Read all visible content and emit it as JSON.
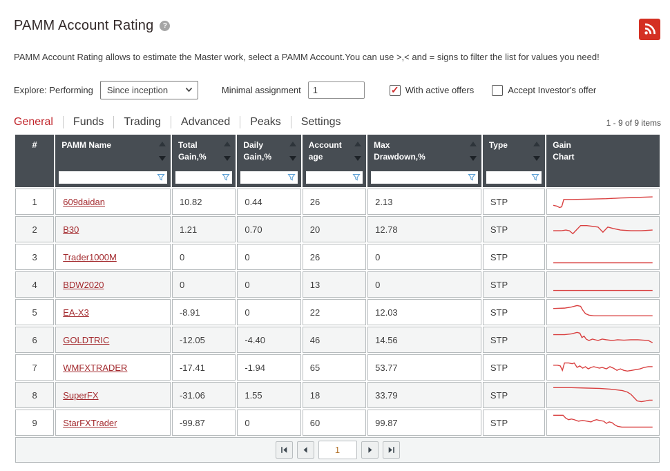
{
  "page": {
    "title": "PAMM Account Rating",
    "help_glyph": "?",
    "description": "PAMM Account Rating allows to estimate the Master work, select a PAMM Account.You can use >,< and = signs to filter the list for values you need!"
  },
  "filters": {
    "explore_label": "Explore: Performing",
    "period_select": "Since inception",
    "minimal_assignment_label": "Minimal assignment",
    "minimal_assignment_value": "1",
    "with_active_offers": {
      "label": "With active offers",
      "checked": true
    },
    "accept_investors_offer": {
      "label": "Accept Investor's offer",
      "checked": false
    }
  },
  "tabs": [
    {
      "label": "General",
      "active": true
    },
    {
      "label": "Funds",
      "active": false
    },
    {
      "label": "Trading",
      "active": false
    },
    {
      "label": "Advanced",
      "active": false
    },
    {
      "label": "Peaks",
      "active": false
    },
    {
      "label": "Settings",
      "active": false
    }
  ],
  "items_count": "1 - 9 of 9 items",
  "table": {
    "columns": [
      {
        "label": "#",
        "sortable": false,
        "filterable": false,
        "center": true
      },
      {
        "label": "PAMM Name",
        "sortable": true,
        "filterable": true
      },
      {
        "label": "Total\nGain,%",
        "sortable": true,
        "filterable": true
      },
      {
        "label": "Daily\nGain,%",
        "sortable": true,
        "filterable": true
      },
      {
        "label": "Account\nage",
        "sortable": true,
        "filterable": true
      },
      {
        "label": "Max\nDrawdown,%",
        "sortable": true,
        "filterable": true
      },
      {
        "label": "Type",
        "sortable": true,
        "filterable": true
      },
      {
        "label": "Gain\nChart",
        "sortable": false,
        "filterable": false
      }
    ],
    "rows": [
      {
        "num": "1",
        "name": "609daidan",
        "total_gain": "10.82",
        "daily_gain": "0.44",
        "account_age": "26",
        "max_drawdown": "2.13",
        "type": "STP",
        "spark": [
          [
            4,
            20
          ],
          [
            9,
            21
          ],
          [
            13,
            23
          ],
          [
            16,
            22
          ],
          [
            19,
            12
          ],
          [
            32,
            12
          ],
          [
            55,
            11.5
          ],
          [
            80,
            11
          ],
          [
            100,
            10
          ],
          [
            118,
            9.5
          ],
          [
            132,
            9
          ],
          [
            146,
            8.5
          ]
        ]
      },
      {
        "num": "2",
        "name": "B30",
        "total_gain": "1.21",
        "daily_gain": "0.70",
        "account_age": "20",
        "max_drawdown": "12.78",
        "type": "STP",
        "spark": [
          [
            4,
            17
          ],
          [
            15,
            17
          ],
          [
            22,
            16
          ],
          [
            27,
            17
          ],
          [
            32,
            21
          ],
          [
            38,
            15
          ],
          [
            43,
            10
          ],
          [
            52,
            10
          ],
          [
            60,
            11
          ],
          [
            68,
            12
          ],
          [
            75,
            19
          ],
          [
            82,
            12
          ],
          [
            90,
            14
          ],
          [
            100,
            16
          ],
          [
            115,
            17
          ],
          [
            130,
            17
          ],
          [
            146,
            16
          ]
        ]
      },
      {
        "num": "3",
        "name": "Trader1000M",
        "total_gain": "0",
        "daily_gain": "0",
        "account_age": "26",
        "max_drawdown": "0",
        "type": "STP",
        "spark": [
          [
            4,
            23
          ],
          [
            146,
            23
          ]
        ]
      },
      {
        "num": "4",
        "name": "BDW2020",
        "total_gain": "0",
        "daily_gain": "0",
        "account_age": "13",
        "max_drawdown": "0",
        "type": "STP",
        "spark": [
          [
            4,
            23
          ],
          [
            146,
            23
          ]
        ]
      },
      {
        "num": "5",
        "name": "EA-X3",
        "total_gain": "-8.91",
        "daily_gain": "0",
        "account_age": "22",
        "max_drawdown": "12.03",
        "type": "STP",
        "spark": [
          [
            4,
            10
          ],
          [
            20,
            9.5
          ],
          [
            30,
            8
          ],
          [
            38,
            6
          ],
          [
            43,
            7
          ],
          [
            46,
            12
          ],
          [
            50,
            17
          ],
          [
            55,
            19
          ],
          [
            62,
            20
          ],
          [
            146,
            20
          ]
        ]
      },
      {
        "num": "6",
        "name": "GOLDTRIC",
        "total_gain": "-12.05",
        "daily_gain": "-4.40",
        "account_age": "46",
        "max_drawdown": "14.56",
        "type": "STP",
        "spark": [
          [
            4,
            8
          ],
          [
            20,
            8
          ],
          [
            30,
            7
          ],
          [
            38,
            5
          ],
          [
            42,
            6
          ],
          [
            45,
            12
          ],
          [
            48,
            10
          ],
          [
            51,
            14
          ],
          [
            55,
            16
          ],
          [
            60,
            14
          ],
          [
            64,
            15
          ],
          [
            68,
            16
          ],
          [
            74,
            14
          ],
          [
            80,
            15
          ],
          [
            88,
            16
          ],
          [
            96,
            15
          ],
          [
            105,
            15.5
          ],
          [
            115,
            15
          ],
          [
            125,
            15
          ],
          [
            133,
            15.5
          ],
          [
            140,
            16
          ],
          [
            146,
            19
          ]
        ]
      },
      {
        "num": "7",
        "name": "WMFXTRADER",
        "total_gain": "-17.41",
        "daily_gain": "-1.94",
        "account_age": "65",
        "max_drawdown": "53.77",
        "type": "STP",
        "spark": [
          [
            4,
            12
          ],
          [
            10,
            12
          ],
          [
            14,
            13
          ],
          [
            17,
            19
          ],
          [
            20,
            9
          ],
          [
            26,
            9
          ],
          [
            31,
            10
          ],
          [
            34,
            9
          ],
          [
            38,
            15
          ],
          [
            42,
            13
          ],
          [
            46,
            16
          ],
          [
            50,
            14
          ],
          [
            54,
            17
          ],
          [
            58,
            15
          ],
          [
            62,
            14
          ],
          [
            66,
            15
          ],
          [
            70,
            16
          ],
          [
            74,
            15
          ],
          [
            80,
            17
          ],
          [
            85,
            14
          ],
          [
            90,
            16
          ],
          [
            95,
            19
          ],
          [
            100,
            17
          ],
          [
            105,
            19
          ],
          [
            110,
            20
          ],
          [
            116,
            19
          ],
          [
            122,
            18
          ],
          [
            128,
            17
          ],
          [
            134,
            15
          ],
          [
            140,
            14
          ],
          [
            146,
            14
          ]
        ]
      },
      {
        "num": "8",
        "name": "SuperFX",
        "total_gain": "-31.06",
        "daily_gain": "1.55",
        "account_age": "18",
        "max_drawdown": "33.79",
        "type": "STP",
        "spark": [
          [
            4,
            5
          ],
          [
            30,
            5
          ],
          [
            50,
            5.5
          ],
          [
            70,
            6
          ],
          [
            85,
            7
          ],
          [
            95,
            8
          ],
          [
            103,
            9
          ],
          [
            110,
            11
          ],
          [
            115,
            14
          ],
          [
            120,
            19
          ],
          [
            124,
            23
          ],
          [
            130,
            24
          ],
          [
            136,
            23
          ],
          [
            141,
            22
          ],
          [
            146,
            22
          ]
        ]
      },
      {
        "num": "9",
        "name": "StarFXTrader",
        "total_gain": "-99.87",
        "daily_gain": "0",
        "account_age": "60",
        "max_drawdown": "99.87",
        "type": "STP",
        "spark": [
          [
            4,
            5
          ],
          [
            18,
            5
          ],
          [
            22,
            9
          ],
          [
            26,
            11
          ],
          [
            30,
            10
          ],
          [
            34,
            11
          ],
          [
            40,
            13
          ],
          [
            46,
            12
          ],
          [
            52,
            13
          ],
          [
            58,
            14
          ],
          [
            62,
            12
          ],
          [
            66,
            11
          ],
          [
            70,
            12
          ],
          [
            76,
            13
          ],
          [
            80,
            16
          ],
          [
            84,
            14
          ],
          [
            88,
            15
          ],
          [
            92,
            18
          ],
          [
            96,
            20
          ],
          [
            102,
            21
          ],
          [
            146,
            21
          ]
        ]
      }
    ]
  },
  "pagination": {
    "page": "1"
  },
  "colors": {
    "accent_red": "#c1262c",
    "link_red": "#a32a2e",
    "spark_red": "#d94040",
    "header_bg": "#474d53",
    "rss_red": "#d43023",
    "check_red": "#cf2a2a",
    "funnel_blue": "#5b9fd4",
    "page_number_orange": "#b4752e"
  }
}
